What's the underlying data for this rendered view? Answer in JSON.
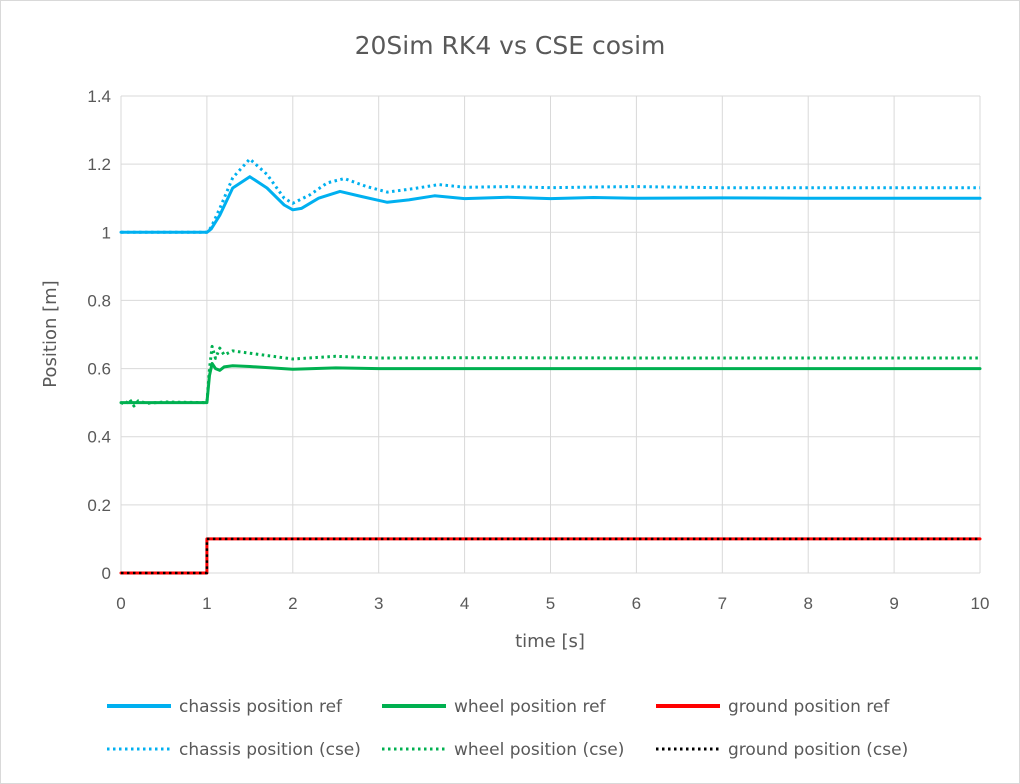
{
  "chart_data": {
    "type": "line",
    "title": "20Sim RK4 vs CSE cosim",
    "xlabel": "time [s]",
    "ylabel": "Position [m]",
    "xlim": [
      0,
      10
    ],
    "ylim": [
      0,
      1.4
    ],
    "x_ticks": [
      "0",
      "1",
      "2",
      "3",
      "4",
      "5",
      "6",
      "7",
      "8",
      "9",
      "10"
    ],
    "y_ticks": [
      "0",
      "0.2",
      "0.4",
      "0.6",
      "0.8",
      "1",
      "1.2",
      "1.4"
    ],
    "grid": true,
    "legend_position": "bottom",
    "series": [
      {
        "name": "chassis position ref",
        "color": "#00b0f0",
        "style": "solid",
        "points": [
          [
            0,
            1.0
          ],
          [
            1.0,
            1.0
          ],
          [
            1.05,
            1.01
          ],
          [
            1.15,
            1.05
          ],
          [
            1.3,
            1.13
          ],
          [
            1.5,
            1.163
          ],
          [
            1.7,
            1.13
          ],
          [
            1.9,
            1.08
          ],
          [
            2.0,
            1.066
          ],
          [
            2.1,
            1.07
          ],
          [
            2.3,
            1.1
          ],
          [
            2.55,
            1.12
          ],
          [
            2.8,
            1.105
          ],
          [
            3.1,
            1.088
          ],
          [
            3.35,
            1.095
          ],
          [
            3.65,
            1.107
          ],
          [
            4.0,
            1.099
          ],
          [
            4.5,
            1.103
          ],
          [
            5.0,
            1.099
          ],
          [
            5.5,
            1.102
          ],
          [
            6.0,
            1.1
          ],
          [
            7.0,
            1.101
          ],
          [
            8.0,
            1.1
          ],
          [
            9.0,
            1.1
          ],
          [
            10.0,
            1.1
          ]
        ]
      },
      {
        "name": "chassis position (cse)",
        "color": "#00b0f0",
        "style": "dotted",
        "points": [
          [
            0,
            1.0
          ],
          [
            1.0,
            1.0
          ],
          [
            1.05,
            1.015
          ],
          [
            1.15,
            1.07
          ],
          [
            1.3,
            1.16
          ],
          [
            1.5,
            1.215
          ],
          [
            1.7,
            1.17
          ],
          [
            1.9,
            1.1
          ],
          [
            2.0,
            1.085
          ],
          [
            2.2,
            1.11
          ],
          [
            2.4,
            1.145
          ],
          [
            2.6,
            1.158
          ],
          [
            2.85,
            1.135
          ],
          [
            3.1,
            1.118
          ],
          [
            3.4,
            1.128
          ],
          [
            3.7,
            1.14
          ],
          [
            4.0,
            1.132
          ],
          [
            4.5,
            1.134
          ],
          [
            5.0,
            1.131
          ],
          [
            5.5,
            1.133
          ],
          [
            6.0,
            1.134
          ],
          [
            7.0,
            1.131
          ],
          [
            8.0,
            1.131
          ],
          [
            9.0,
            1.131
          ],
          [
            10.0,
            1.131
          ]
        ]
      },
      {
        "name": "wheel position ref",
        "color": "#00b050",
        "style": "solid",
        "points": [
          [
            0,
            0.5
          ],
          [
            1.0,
            0.5
          ],
          [
            1.03,
            0.58
          ],
          [
            1.06,
            0.615
          ],
          [
            1.1,
            0.6
          ],
          [
            1.15,
            0.595
          ],
          [
            1.2,
            0.605
          ],
          [
            1.3,
            0.608
          ],
          [
            1.5,
            0.606
          ],
          [
            2.0,
            0.598
          ],
          [
            2.5,
            0.602
          ],
          [
            3.0,
            0.6
          ],
          [
            4.0,
            0.6
          ],
          [
            6.0,
            0.6
          ],
          [
            8.0,
            0.6
          ],
          [
            10.0,
            0.6
          ]
        ]
      },
      {
        "name": "wheel position (cse)",
        "color": "#00b050",
        "style": "dotted",
        "points": [
          [
            0,
            0.5
          ],
          [
            0.05,
            0.495
          ],
          [
            0.1,
            0.51
          ],
          [
            0.15,
            0.49
          ],
          [
            0.2,
            0.505
          ],
          [
            0.3,
            0.498
          ],
          [
            0.5,
            0.502
          ],
          [
            1.0,
            0.5
          ],
          [
            1.03,
            0.6
          ],
          [
            1.06,
            0.665
          ],
          [
            1.1,
            0.63
          ],
          [
            1.15,
            0.66
          ],
          [
            1.2,
            0.64
          ],
          [
            1.3,
            0.652
          ],
          [
            1.5,
            0.645
          ],
          [
            2.0,
            0.628
          ],
          [
            2.5,
            0.636
          ],
          [
            3.0,
            0.631
          ],
          [
            4.0,
            0.632
          ],
          [
            6.0,
            0.631
          ],
          [
            8.0,
            0.631
          ],
          [
            10.0,
            0.631
          ]
        ]
      },
      {
        "name": "ground position ref",
        "color": "#ff0000",
        "style": "solid",
        "points": [
          [
            0,
            0.0
          ],
          [
            1.0,
            0.0
          ],
          [
            1.0,
            0.1
          ],
          [
            10.0,
            0.1
          ]
        ]
      },
      {
        "name": "ground position (cse)",
        "color": "#000000",
        "style": "dotted",
        "points": [
          [
            0,
            0.0
          ],
          [
            1.0,
            0.0
          ],
          [
            1.0,
            0.1
          ],
          [
            10.0,
            0.1
          ]
        ]
      }
    ]
  }
}
